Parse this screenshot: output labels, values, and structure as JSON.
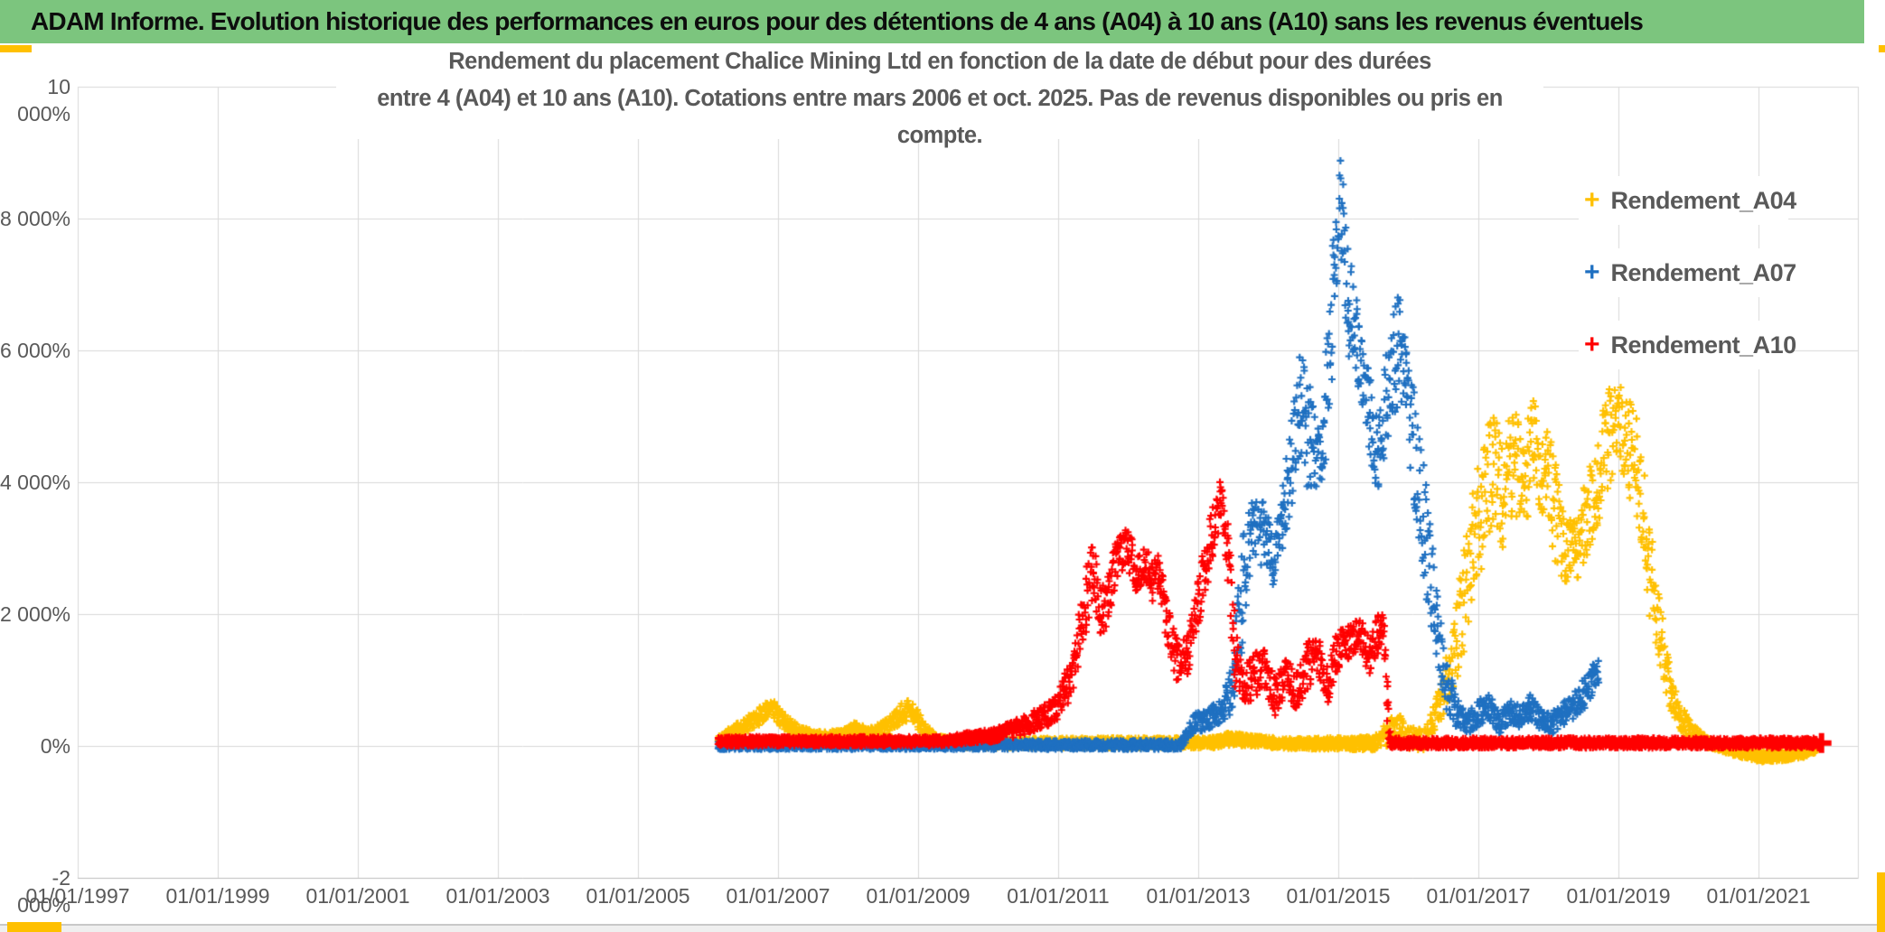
{
  "banner": {
    "title": "ADAM Informe. Evolution historique des performances en euros pour des détentions de 4 ans (A04) à 10 ans (A10) sans les revenus éventuels",
    "bg_color": "#7CC57E",
    "accent_color": "#FFC000"
  },
  "chart_data": {
    "type": "scatter",
    "title_line1": "Rendement du placement Chalice Mining Ltd en fonction de la date de début pour des durées",
    "title_line2": "entre 4 (A04) et 10 ans (A10). Cotations entre mars 2006 et oct. 2025. Pas de revenus disponibles ou pris en compte.",
    "grid": true,
    "grid_color": "#D9D9D9",
    "axis_line_color": "#BDBDBD",
    "text_color": "#595959",
    "x_axis": {
      "tick_years": [
        1997,
        1999,
        2001,
        2003,
        2005,
        2007,
        2009,
        2011,
        2013,
        2015,
        2017,
        2019,
        2021
      ],
      "tick_labels": [
        "01/01/1997",
        "01/01/1999",
        "01/01/2001",
        "01/01/2003",
        "01/01/2005",
        "01/01/2007",
        "01/01/2009",
        "01/01/2011",
        "01/01/2013",
        "01/01/2015",
        "01/01/2017",
        "01/01/2019",
        "01/01/2021"
      ],
      "range_years": [
        1997,
        2022.4
      ]
    },
    "y_axis": {
      "tick_values": [
        10000,
        8000,
        6000,
        4000,
        2000,
        0,
        -2000
      ],
      "tick_labels": [
        "10 000%",
        "8 000%",
        "6 000%",
        "4 000%",
        "2 000%",
        "0%",
        "-2 000%"
      ],
      "min": -2000,
      "max": 10000
    },
    "legend": {
      "position": "right-top",
      "entries": [
        {
          "label": "Rendement_A04",
          "color": "#FFC000"
        },
        {
          "label": "Rendement_A07",
          "color": "#1F70C1"
        },
        {
          "label": "Rendement_A10",
          "color": "#FF0000"
        }
      ]
    },
    "series": [
      {
        "name": "Rendement_A04",
        "color": "#FFC000",
        "marker": "+",
        "band_format": "[start_year, pct_low, pct_high]",
        "band": [
          [
            2006.15,
            0,
            160
          ],
          [
            2006.4,
            120,
            330
          ],
          [
            2006.6,
            230,
            480
          ],
          [
            2006.8,
            360,
            650
          ],
          [
            2006.95,
            380,
            680
          ],
          [
            2007.1,
            240,
            490
          ],
          [
            2007.3,
            120,
            300
          ],
          [
            2007.5,
            60,
            230
          ],
          [
            2007.9,
            60,
            230
          ],
          [
            2008.1,
            140,
            360
          ],
          [
            2008.3,
            80,
            260
          ],
          [
            2008.55,
            140,
            400
          ],
          [
            2008.75,
            330,
            640
          ],
          [
            2008.9,
            400,
            740
          ],
          [
            2009.05,
            140,
            430
          ],
          [
            2009.25,
            20,
            160
          ],
          [
            2009.6,
            -30,
            110
          ],
          [
            2013.2,
            -30,
            130
          ],
          [
            2013.45,
            0,
            210
          ],
          [
            2013.7,
            -10,
            160
          ],
          [
            2014.3,
            -40,
            110
          ],
          [
            2015.5,
            -60,
            140
          ],
          [
            2015.7,
            0,
            350
          ],
          [
            2015.85,
            120,
            560
          ],
          [
            2016.0,
            -80,
            280
          ],
          [
            2016.25,
            -60,
            260
          ],
          [
            2016.45,
            350,
            900
          ],
          [
            2016.6,
            700,
            1600
          ],
          [
            2016.75,
            1200,
            2700
          ],
          [
            2016.9,
            2100,
            3700
          ],
          [
            2017.05,
            2700,
            4700
          ],
          [
            2017.2,
            3400,
            5150
          ],
          [
            2017.35,
            3000,
            4800
          ],
          [
            2017.5,
            3600,
            5150
          ],
          [
            2017.65,
            3200,
            4700
          ],
          [
            2017.8,
            3900,
            5450
          ],
          [
            2017.95,
            3300,
            5200
          ],
          [
            2018.1,
            2700,
            4300
          ],
          [
            2018.25,
            2400,
            3400
          ],
          [
            2018.4,
            2500,
            3500
          ],
          [
            2018.55,
            2800,
            4100
          ],
          [
            2018.7,
            3300,
            4700
          ],
          [
            2018.85,
            3900,
            5400
          ],
          [
            2019.0,
            4400,
            5500
          ],
          [
            2019.15,
            3800,
            5300
          ],
          [
            2019.3,
            3300,
            4900
          ],
          [
            2019.45,
            1900,
            3400
          ],
          [
            2019.6,
            1200,
            2200
          ],
          [
            2019.75,
            500,
            1100
          ],
          [
            2019.9,
            200,
            600
          ],
          [
            2020.05,
            60,
            350
          ],
          [
            2020.25,
            -20,
            140
          ],
          [
            2020.5,
            -90,
            40
          ],
          [
            2020.75,
            -190,
            -30
          ],
          [
            2021.05,
            -240,
            -70
          ],
          [
            2021.35,
            -230,
            -70
          ],
          [
            2021.65,
            -170,
            -40
          ],
          [
            2021.82,
            -110,
            -20
          ]
        ]
      },
      {
        "name": "Rendement_A07",
        "color": "#1F70C1",
        "marker": "+",
        "band_format": "[start_year, pct_low, pct_high]",
        "band": [
          [
            2006.15,
            -50,
            80
          ],
          [
            2012.75,
            -50,
            80
          ],
          [
            2012.95,
            200,
            520
          ],
          [
            2013.15,
            260,
            580
          ],
          [
            2013.35,
            330,
            700
          ],
          [
            2013.5,
            550,
            1400
          ],
          [
            2013.62,
            1400,
            3100
          ],
          [
            2013.75,
            2600,
            3700
          ],
          [
            2013.95,
            2800,
            3700
          ],
          [
            2014.08,
            2300,
            3100
          ],
          [
            2014.2,
            2900,
            3900
          ],
          [
            2014.35,
            3700,
            5300
          ],
          [
            2014.45,
            4100,
            6050
          ],
          [
            2014.58,
            3900,
            5600
          ],
          [
            2014.72,
            3750,
            4800
          ],
          [
            2014.85,
            4300,
            6300
          ],
          [
            2014.95,
            6300,
            8300
          ],
          [
            2015.05,
            7300,
            9050
          ],
          [
            2015.15,
            5800,
            7700
          ],
          [
            2015.3,
            5400,
            6600
          ],
          [
            2015.45,
            4400,
            5700
          ],
          [
            2015.57,
            3800,
            5100
          ],
          [
            2015.7,
            4500,
            6100
          ],
          [
            2015.85,
            5200,
            6930
          ],
          [
            2015.97,
            4700,
            6200
          ],
          [
            2016.1,
            3500,
            5200
          ],
          [
            2016.25,
            2300,
            4100
          ],
          [
            2016.4,
            1100,
            2400
          ],
          [
            2016.55,
            500,
            1300
          ],
          [
            2016.7,
            250,
            700
          ],
          [
            2016.85,
            180,
            500
          ],
          [
            2017.0,
            300,
            700
          ],
          [
            2017.15,
            400,
            800
          ],
          [
            2017.3,
            180,
            500
          ],
          [
            2017.45,
            350,
            750
          ],
          [
            2017.6,
            250,
            600
          ],
          [
            2017.75,
            400,
            800
          ],
          [
            2017.9,
            220,
            550
          ],
          [
            2018.05,
            180,
            500
          ],
          [
            2018.2,
            300,
            650
          ],
          [
            2018.35,
            400,
            780
          ],
          [
            2018.5,
            550,
            1000
          ],
          [
            2018.62,
            750,
            1250
          ],
          [
            2018.72,
            950,
            1450
          ]
        ]
      },
      {
        "name": "Rendement_A10",
        "color": "#FF0000",
        "marker": "+",
        "band_format": "[start_year, pct_low, pct_high]",
        "band": [
          [
            2006.15,
            0,
            140
          ],
          [
            2009.4,
            0,
            140
          ],
          [
            2009.8,
            50,
            220
          ],
          [
            2010.1,
            60,
            260
          ],
          [
            2010.4,
            140,
            400
          ],
          [
            2010.7,
            240,
            560
          ],
          [
            2010.95,
            350,
            720
          ],
          [
            2011.1,
            550,
            1100
          ],
          [
            2011.25,
            950,
            1800
          ],
          [
            2011.4,
            1700,
            2700
          ],
          [
            2011.5,
            2300,
            3150
          ],
          [
            2011.6,
            1600,
            2400
          ],
          [
            2011.72,
            1900,
            2750
          ],
          [
            2011.85,
            2600,
            3340
          ],
          [
            2012.0,
            2700,
            3300
          ],
          [
            2012.12,
            2300,
            2900
          ],
          [
            2012.25,
            2500,
            3100
          ],
          [
            2012.35,
            2200,
            2800
          ],
          [
            2012.45,
            2350,
            2950
          ],
          [
            2012.55,
            1500,
            2250
          ],
          [
            2012.7,
            950,
            1600
          ],
          [
            2012.85,
            1100,
            1750
          ],
          [
            2013.0,
            1800,
            2550
          ],
          [
            2013.1,
            2300,
            3100
          ],
          [
            2013.2,
            2800,
            3700
          ],
          [
            2013.32,
            3300,
            4060
          ],
          [
            2013.42,
            2300,
            3400
          ],
          [
            2013.52,
            900,
            2100
          ],
          [
            2013.65,
            550,
            1200
          ],
          [
            2013.8,
            750,
            1400
          ],
          [
            2013.95,
            850,
            1500
          ],
          [
            2014.1,
            450,
            1000
          ],
          [
            2014.25,
            750,
            1400
          ],
          [
            2014.4,
            550,
            1100
          ],
          [
            2014.55,
            850,
            1600
          ],
          [
            2014.7,
            1050,
            1700
          ],
          [
            2014.85,
            650,
            1200
          ],
          [
            2015.0,
            1150,
            1800
          ],
          [
            2015.15,
            1250,
            1900
          ],
          [
            2015.3,
            1500,
            1950
          ],
          [
            2015.45,
            1050,
            1700
          ],
          [
            2015.57,
            1400,
            1980
          ],
          [
            2015.64,
            1600,
            2020
          ],
          [
            2015.7,
            300,
            1100
          ],
          [
            2015.74,
            -30,
            120
          ],
          [
            2021.88,
            -30,
            120
          ]
        ],
        "end_cap": [
          2021.9,
          45
        ]
      }
    ]
  }
}
